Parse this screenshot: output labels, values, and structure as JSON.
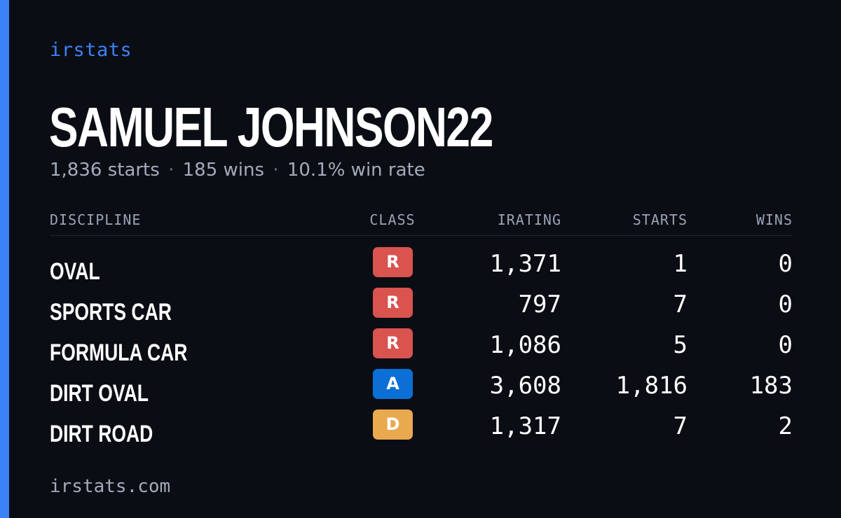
{
  "brand": "irstats",
  "player": {
    "name": "SAMUEL JOHNSON22",
    "starts_text": "1,836 starts",
    "wins_text": "185 wins",
    "win_rate_text": "10.1% win rate",
    "separator": "·"
  },
  "table": {
    "headers": {
      "discipline": "DISCIPLINE",
      "class": "CLASS",
      "irating": "IRATING",
      "starts": "STARTS",
      "wins": "WINS"
    },
    "rows": [
      {
        "discipline": "OVAL",
        "class": "R",
        "class_color": "#d9534f",
        "irating": "1,371",
        "starts": "1",
        "wins": "0"
      },
      {
        "discipline": "SPORTS CAR",
        "class": "R",
        "class_color": "#d9534f",
        "irating": "797",
        "starts": "7",
        "wins": "0"
      },
      {
        "discipline": "FORMULA CAR",
        "class": "R",
        "class_color": "#d9534f",
        "irating": "1,086",
        "starts": "5",
        "wins": "0"
      },
      {
        "discipline": "DIRT OVAL",
        "class": "A",
        "class_color": "#0b6fd6",
        "irating": "3,608",
        "starts": "1,816",
        "wins": "183"
      },
      {
        "discipline": "DIRT ROAD",
        "class": "D",
        "class_color": "#e8a94f",
        "irating": "1,317",
        "starts": "7",
        "wins": "2"
      }
    ]
  },
  "footer": "irstats.com",
  "colors": {
    "background": "#0b0d14",
    "accent": "#3b82f6",
    "muted_text": "#a3abbb"
  }
}
